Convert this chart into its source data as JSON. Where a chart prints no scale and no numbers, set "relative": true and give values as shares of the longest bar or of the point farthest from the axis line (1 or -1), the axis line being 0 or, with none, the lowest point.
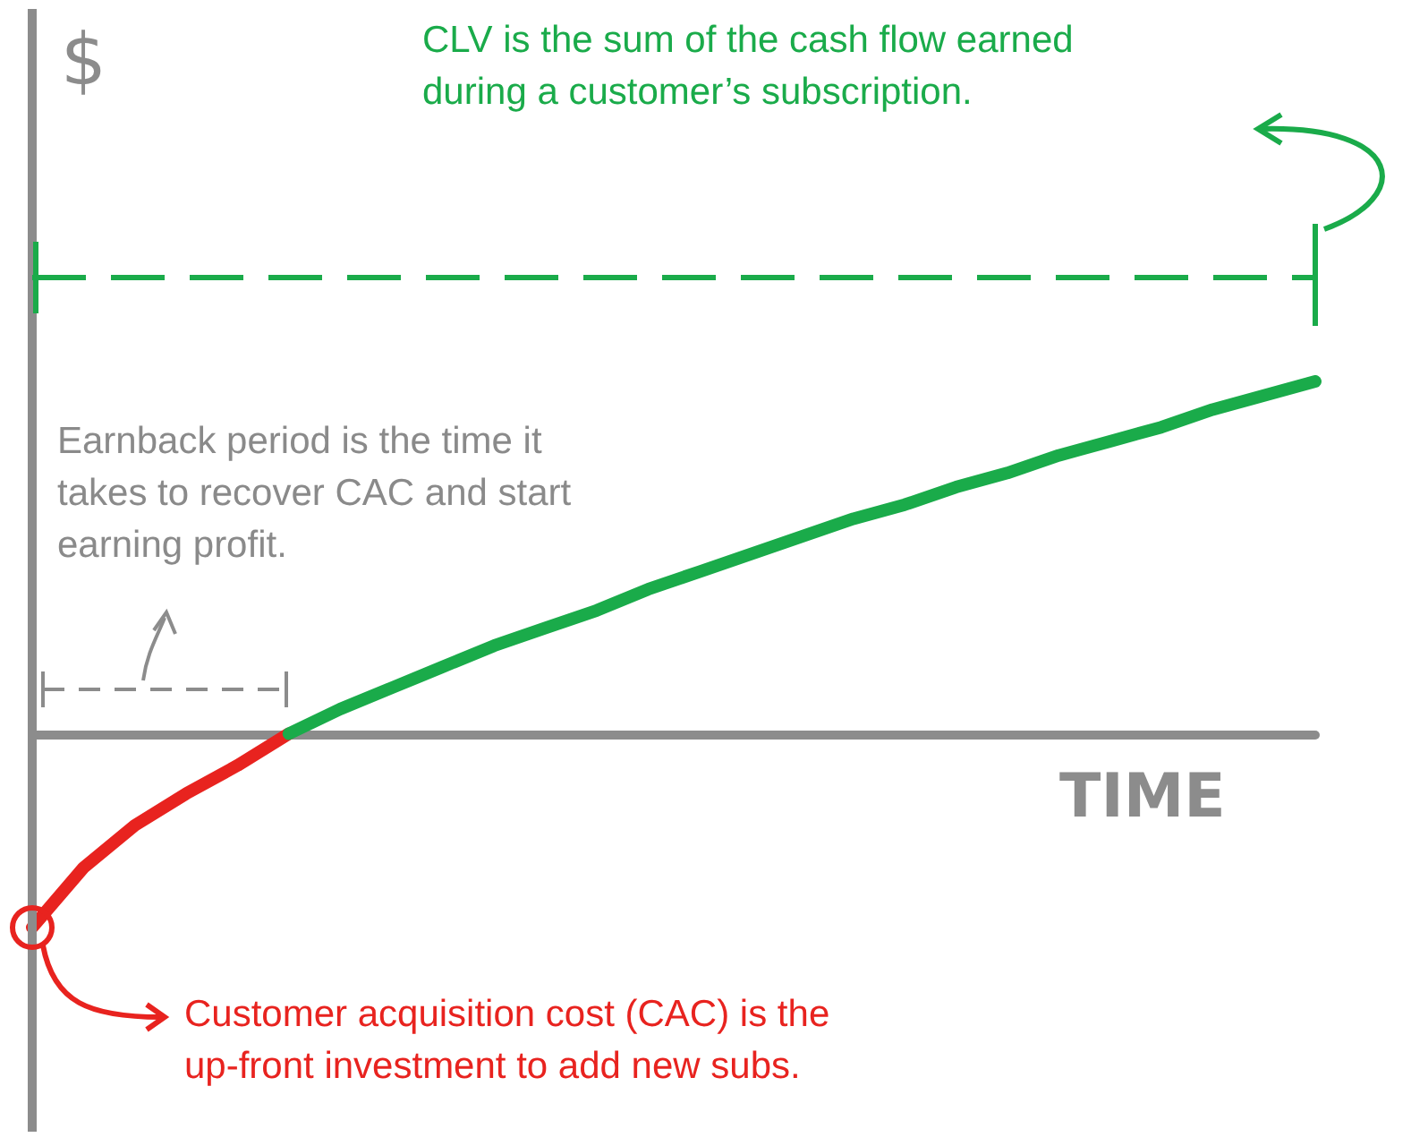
{
  "chart_data": {
    "type": "line",
    "relative": true,
    "xlabel": "TIME",
    "ylabel": "$",
    "marker": "none",
    "line_style": "solid",
    "categories": [
      null,
      null,
      null,
      null,
      null,
      null,
      null,
      null,
      null,
      null,
      null,
      null,
      null,
      null,
      null,
      null,
      null,
      null,
      null,
      null,
      null,
      null,
      null,
      null,
      null,
      null
    ],
    "series": [
      {
        "color": "#e8231f",
        "values": [
          -0.55,
          -0.38,
          -0.26,
          -0.17,
          -0.09,
          0,
          null,
          null,
          null,
          null,
          null,
          null,
          null,
          null,
          null,
          null,
          null,
          null,
          null,
          null,
          null,
          null,
          null,
          null,
          null,
          null
        ]
      },
      {
        "color": "#1aab4a",
        "values": [
          null,
          null,
          null,
          null,
          null,
          0,
          0.07,
          0.13,
          0.19,
          0.25,
          0.3,
          0.35,
          0.41,
          0.46,
          0.51,
          0.56,
          0.61,
          0.65,
          0.7,
          0.74,
          0.79,
          0.83,
          0.87,
          0.92,
          0.96,
          1
        ]
      }
    ],
    "annotations": [
      "CLV is the sum of the cash flow earned during a customer’s subscription.",
      "Earnback period is the time it takes to recover CAC and start earning profit.",
      "Customer acquisition cost (CAC) is the up-front investment to add new subs."
    ]
  }
}
